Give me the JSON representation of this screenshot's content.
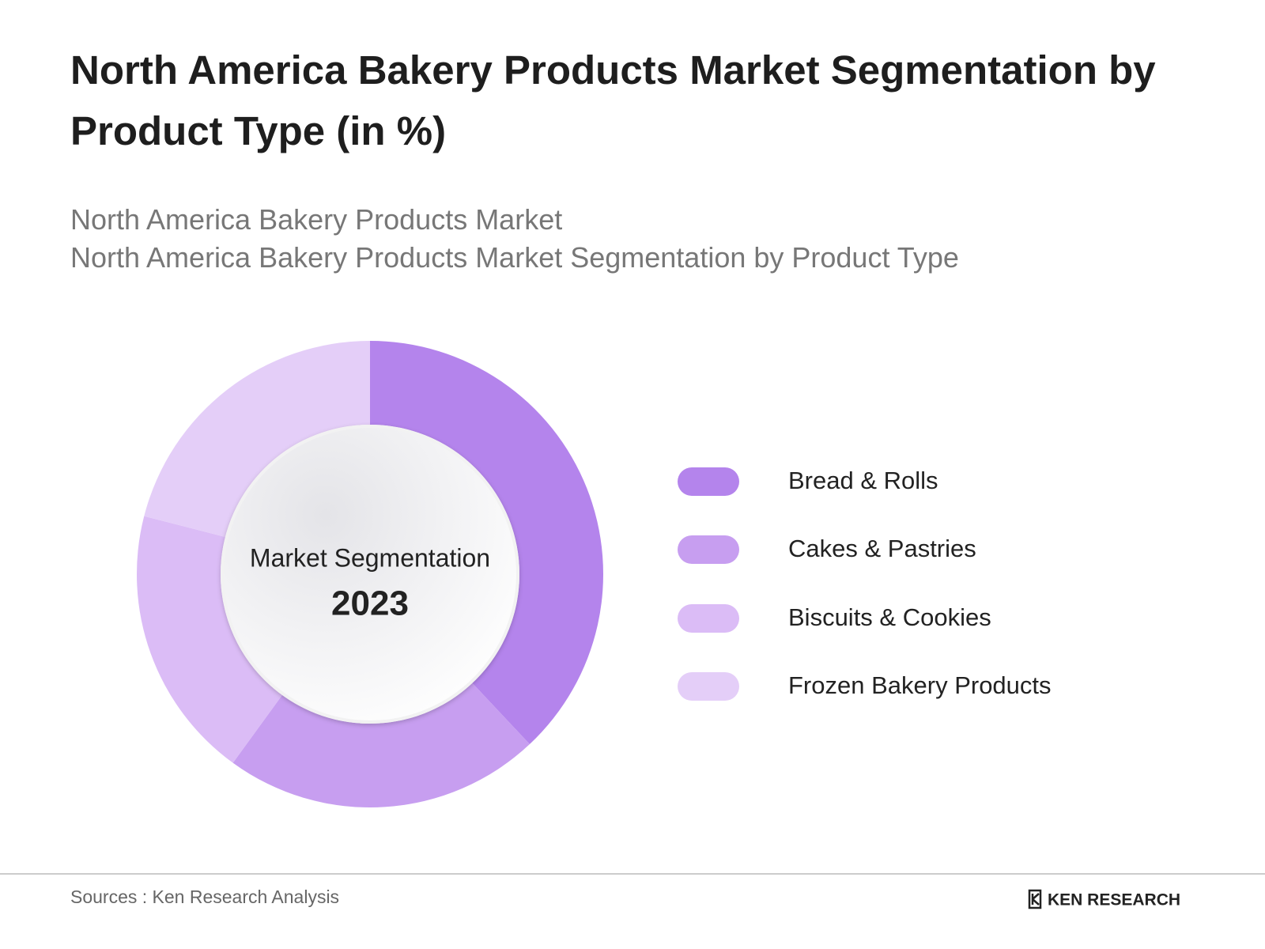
{
  "chart_data": {
    "type": "donut",
    "title": "North America Bakery Products Market Segmentation by Product Type  (in %)",
    "subtitle": [
      "North America Bakery Products Market",
      "North America Bakery Products Market Segmentation by Product Type"
    ],
    "center_label": "Market Segmentation",
    "center_year": "2023",
    "categories": [
      "Bread & Rolls",
      "Cakes & Pastries",
      "Biscuits & Cookies",
      "Frozen Bakery Products"
    ],
    "values": [
      38,
      22,
      19,
      21
    ],
    "colors": [
      "#b484ec",
      "#c79ef0",
      "#dbbcf6",
      "#e4cef8"
    ],
    "source": "Sources : Ken Research Analysis",
    "logo": "KEN RESEARCH"
  }
}
